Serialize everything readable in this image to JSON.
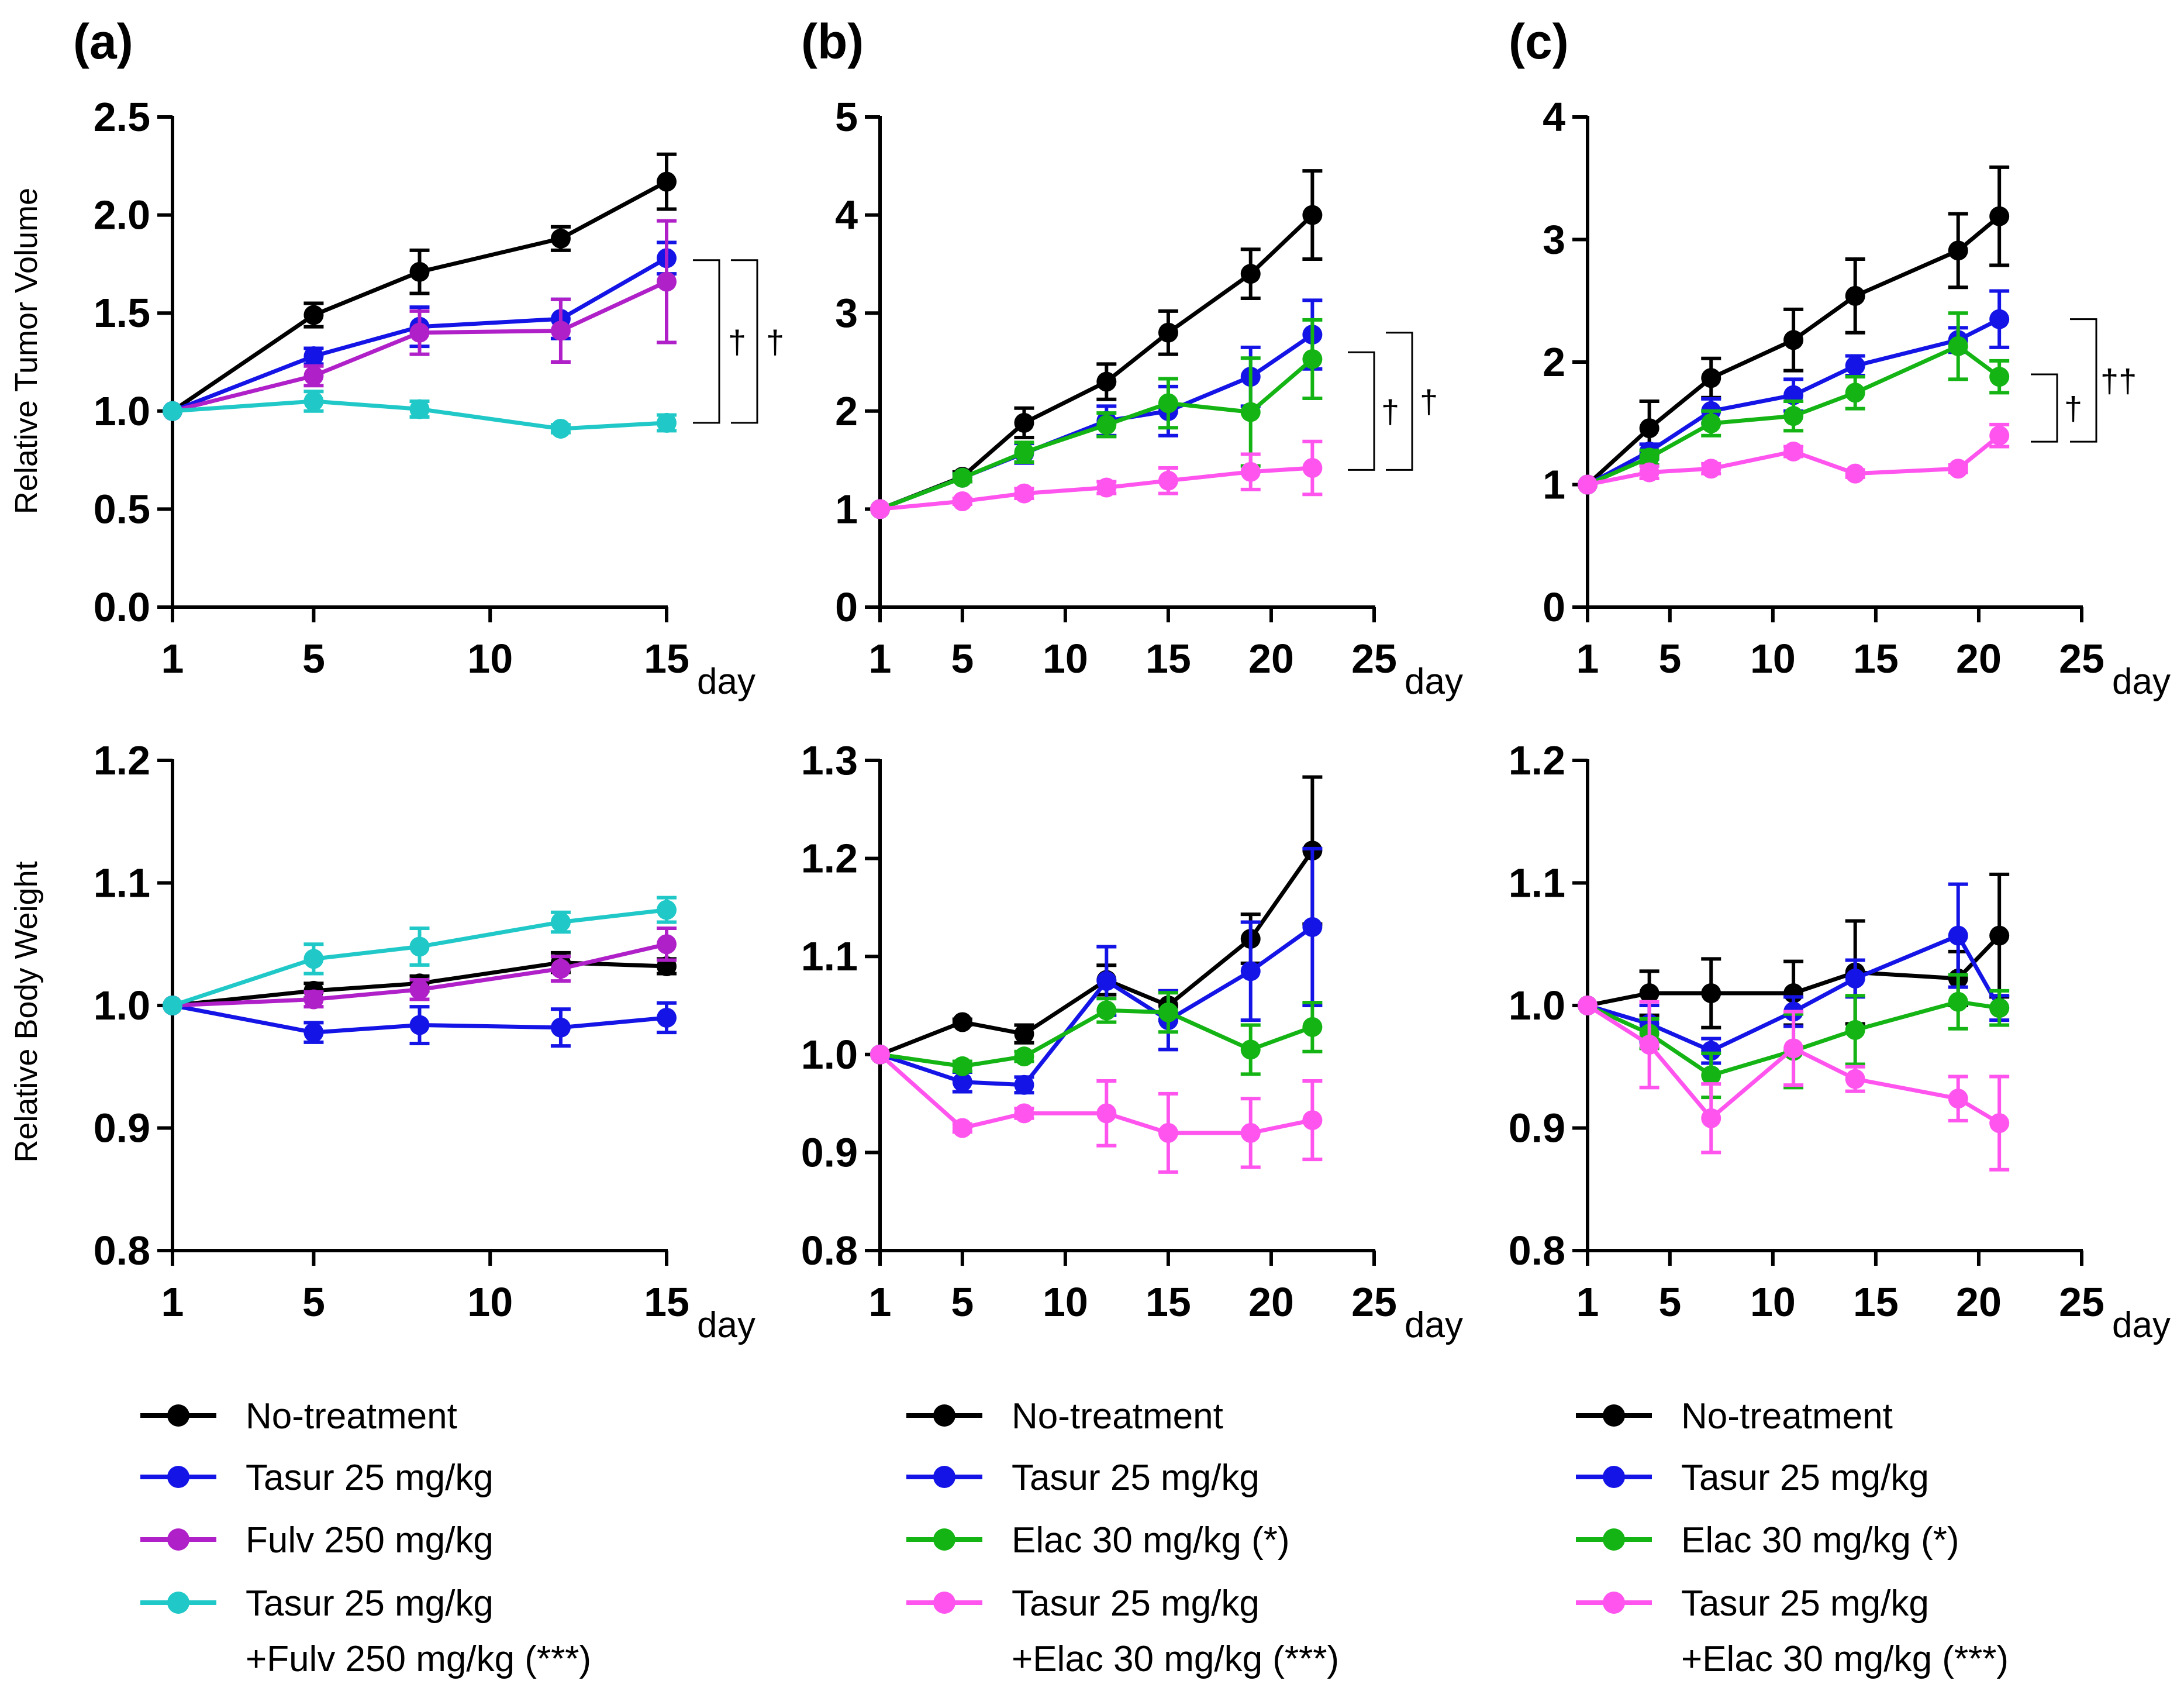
{
  "figure": {
    "panel_labels": [
      "(a)",
      "(b)",
      "(c)"
    ],
    "ylabels": [
      "Relative Tumor Volume",
      "Relative Body Weight"
    ],
    "xunit": "day"
  },
  "colors": {
    "No-treatment": "#000000",
    "Tasur": "#1414e6",
    "Fulv": "#b020c8",
    "TasurFulv": "#20c8c8",
    "Elac": "#14b414",
    "TasurElac": "#ff55ee"
  },
  "legends": [
    [
      {
        "lines": [
          "No-treatment"
        ],
        "color": "#000000"
      },
      {
        "lines": [
          "Tasur 25 mg/kg"
        ],
        "color": "#1414e6"
      },
      {
        "lines": [
          "Fulv 250 mg/kg"
        ],
        "color": "#b020c8"
      },
      {
        "lines": [
          "Tasur 25 mg/kg",
          "+Fulv 250 mg/kg (***)"
        ],
        "color": "#20c8c8"
      }
    ],
    [
      {
        "lines": [
          "No-treatment"
        ],
        "color": "#000000"
      },
      {
        "lines": [
          "Tasur 25 mg/kg"
        ],
        "color": "#1414e6"
      },
      {
        "lines": [
          "Elac 30 mg/kg (*)"
        ],
        "color": "#14b414"
      },
      {
        "lines": [
          "Tasur 25 mg/kg",
          "+Elac 30 mg/kg (***)"
        ],
        "color": "#ff55ee"
      }
    ],
    [
      {
        "lines": [
          "No-treatment"
        ],
        "color": "#000000"
      },
      {
        "lines": [
          "Tasur 25 mg/kg"
        ],
        "color": "#1414e6"
      },
      {
        "lines": [
          "Elac 30 mg/kg (*)"
        ],
        "color": "#14b414"
      },
      {
        "lines": [
          "Tasur 25 mg/kg",
          "+Elac 30 mg/kg (***)"
        ],
        "color": "#ff55ee"
      }
    ]
  ],
  "chart_data": [
    {
      "panel": "(a)",
      "type": "line",
      "ylabel": "Relative Tumor Volume",
      "xlabel": "day",
      "xlim": [
        1,
        15
      ],
      "xticks": [
        1,
        5,
        10,
        15
      ],
      "ylim": [
        0,
        2.5
      ],
      "yticks": [
        0.0,
        0.5,
        1.0,
        1.5,
        2.0,
        2.5
      ],
      "ytick_labels": [
        "0.0",
        "0.5",
        "1.0",
        "1.5",
        "2.0",
        "2.5"
      ],
      "series": [
        {
          "name": "No-treatment",
          "color": "#000000",
          "x": [
            1,
            5,
            8,
            12,
            15
          ],
          "y": [
            1.0,
            1.49,
            1.71,
            1.88,
            2.17
          ],
          "err": [
            0,
            0.06,
            0.11,
            0.06,
            0.14
          ]
        },
        {
          "name": "Tasur 25 mg/kg",
          "color": "#1414e6",
          "x": [
            1,
            5,
            8,
            12,
            15
          ],
          "y": [
            1.0,
            1.28,
            1.43,
            1.47,
            1.78
          ],
          "err": [
            0,
            0.04,
            0.1,
            0.1,
            0.08
          ]
        },
        {
          "name": "Fulv 250 mg/kg",
          "color": "#b020c8",
          "x": [
            1,
            5,
            8,
            12,
            15
          ],
          "y": [
            1.0,
            1.18,
            1.4,
            1.41,
            1.66
          ],
          "err": [
            0,
            0.05,
            0.11,
            0.16,
            0.31
          ]
        },
        {
          "name": "Tasur 25 mg/kg +Fulv 250 mg/kg (***)",
          "color": "#20c8c8",
          "x": [
            1,
            5,
            8,
            12,
            15
          ],
          "y": [
            1.0,
            1.05,
            1.01,
            0.91,
            0.94
          ],
          "err": [
            0,
            0.05,
            0.04,
            0.02,
            0.04
          ]
        }
      ],
      "annotations": [
        {
          "text": "†",
          "y_top": 1.77,
          "y_bottom": 0.94
        },
        {
          "text": "†",
          "y_top": 1.77,
          "y_bottom": 0.94
        }
      ]
    },
    {
      "panel": "(b)",
      "type": "line",
      "ylabel": "",
      "xlabel": "day",
      "xlim": [
        1,
        25
      ],
      "xticks": [
        1,
        5,
        10,
        15,
        20,
        25
      ],
      "ylim": [
        0,
        5
      ],
      "yticks": [
        0,
        1,
        2,
        3,
        4,
        5
      ],
      "ytick_labels": [
        "0",
        "1",
        "2",
        "3",
        "4",
        "5"
      ],
      "series": [
        {
          "name": "No-treatment",
          "color": "#000000",
          "x": [
            1,
            5,
            8,
            12,
            15,
            19,
            22
          ],
          "y": [
            1.0,
            1.33,
            1.88,
            2.3,
            2.8,
            3.4,
            4.0
          ],
          "err": [
            0,
            0.05,
            0.15,
            0.18,
            0.22,
            0.25,
            0.45
          ]
        },
        {
          "name": "Tasur 25 mg/kg",
          "color": "#1414e6",
          "x": [
            1,
            5,
            8,
            12,
            15,
            19,
            22
          ],
          "y": [
            1.0,
            1.32,
            1.57,
            1.9,
            2.0,
            2.35,
            2.78
          ],
          "err": [
            0,
            0.04,
            0.1,
            0.15,
            0.25,
            0.3,
            0.35
          ]
        },
        {
          "name": "Elac 30 mg/kg (*)",
          "color": "#14b414",
          "x": [
            1,
            5,
            8,
            12,
            15,
            19,
            22
          ],
          "y": [
            1.0,
            1.32,
            1.58,
            1.86,
            2.08,
            1.99,
            2.53
          ],
          "err": [
            0,
            0.04,
            0.1,
            0.12,
            0.25,
            0.55,
            0.4
          ]
        },
        {
          "name": "Tasur 25 mg/kg +Elac 30 mg/kg (***)",
          "color": "#ff55ee",
          "x": [
            1,
            5,
            8,
            12,
            15,
            19,
            22
          ],
          "y": [
            1.0,
            1.08,
            1.16,
            1.22,
            1.29,
            1.38,
            1.42
          ],
          "err": [
            0,
            0.03,
            0.05,
            0.06,
            0.13,
            0.18,
            0.27
          ]
        }
      ],
      "annotations": [
        {
          "text": "†",
          "y_top": 2.6,
          "y_bottom": 1.4
        },
        {
          "text": "†",
          "y_top": 2.8,
          "y_bottom": 1.4
        }
      ]
    },
    {
      "panel": "(c)",
      "type": "line",
      "ylabel": "",
      "xlabel": "day",
      "xlim": [
        1,
        25
      ],
      "xticks": [
        1,
        5,
        10,
        15,
        20,
        25
      ],
      "ylim": [
        0,
        4
      ],
      "yticks": [
        0,
        1,
        2,
        3,
        4
      ],
      "ytick_labels": [
        "0",
        "1",
        "2",
        "3",
        "4"
      ],
      "series": [
        {
          "name": "No-treatment",
          "color": "#000000",
          "x": [
            1,
            4,
            7,
            11,
            14,
            19,
            21
          ],
          "y": [
            1.0,
            1.46,
            1.87,
            2.18,
            2.54,
            2.91,
            3.19
          ],
          "err": [
            0,
            0.22,
            0.16,
            0.25,
            0.3,
            0.3,
            0.4
          ]
        },
        {
          "name": "Tasur 25 mg/kg",
          "color": "#1414e6",
          "x": [
            1,
            4,
            7,
            11,
            14,
            19,
            21
          ],
          "y": [
            1.0,
            1.27,
            1.6,
            1.73,
            1.97,
            2.18,
            2.35
          ],
          "err": [
            0,
            0.06,
            0.1,
            0.13,
            0.08,
            0.1,
            0.23
          ]
        },
        {
          "name": "Elac 30 mg/kg (*)",
          "color": "#14b414",
          "x": [
            1,
            4,
            7,
            11,
            14,
            19,
            21
          ],
          "y": [
            1.0,
            1.22,
            1.5,
            1.56,
            1.75,
            2.13,
            1.88
          ],
          "err": [
            0,
            0.06,
            0.1,
            0.12,
            0.13,
            0.27,
            0.13
          ]
        },
        {
          "name": "Tasur 25 mg/kg +Elac 30 mg/kg (***)",
          "color": "#ff55ee",
          "x": [
            1,
            4,
            7,
            11,
            14,
            19,
            21
          ],
          "y": [
            1.0,
            1.1,
            1.13,
            1.27,
            1.09,
            1.13,
            1.4
          ],
          "err": [
            0,
            0.05,
            0.04,
            0.04,
            0.03,
            0.03,
            0.09
          ]
        }
      ],
      "annotations": [
        {
          "text": "†",
          "y_top": 1.9,
          "y_bottom": 1.35
        },
        {
          "text": "††",
          "y_top": 2.35,
          "y_bottom": 1.35
        }
      ]
    },
    {
      "panel": "(a)",
      "type": "line",
      "ylabel": "Relative Body Weight",
      "xlabel": "day",
      "xlim": [
        1,
        15
      ],
      "xticks": [
        1,
        5,
        10,
        15
      ],
      "ylim": [
        0.8,
        1.2
      ],
      "yticks": [
        0.8,
        0.9,
        1.0,
        1.1,
        1.2
      ],
      "ytick_labels": [
        "0.8",
        "0.9",
        "1.0",
        "1.1",
        "1.2"
      ],
      "series": [
        {
          "name": "No-treatment",
          "color": "#000000",
          "x": [
            1,
            5,
            8,
            12,
            15
          ],
          "y": [
            1.0,
            1.012,
            1.018,
            1.035,
            1.032
          ],
          "err": [
            0,
            0.006,
            0.006,
            0.008,
            0.006
          ]
        },
        {
          "name": "Tasur 25 mg/kg",
          "color": "#1414e6",
          "x": [
            1,
            5,
            8,
            12,
            15
          ],
          "y": [
            1.0,
            0.978,
            0.984,
            0.982,
            0.99
          ],
          "err": [
            0,
            0.008,
            0.015,
            0.015,
            0.012
          ]
        },
        {
          "name": "Fulv 250 mg/kg",
          "color": "#b020c8",
          "x": [
            1,
            5,
            8,
            12,
            15
          ],
          "y": [
            1.0,
            1.005,
            1.013,
            1.03,
            1.05
          ],
          "err": [
            0,
            0.006,
            0.008,
            0.01,
            0.013
          ]
        },
        {
          "name": "Tasur 25 mg/kg +Fulv 250 mg/kg (***)",
          "color": "#20c8c8",
          "x": [
            1,
            5,
            8,
            12,
            15
          ],
          "y": [
            1.0,
            1.038,
            1.048,
            1.068,
            1.078
          ],
          "err": [
            0,
            0.012,
            0.015,
            0.008,
            0.01
          ]
        }
      ]
    },
    {
      "panel": "(b)",
      "type": "line",
      "ylabel": "",
      "xlabel": "day",
      "xlim": [
        1,
        25
      ],
      "xticks": [
        1,
        5,
        10,
        15,
        20,
        25
      ],
      "ylim": [
        0.8,
        1.3
      ],
      "yticks": [
        0.8,
        0.9,
        1.0,
        1.1,
        1.2,
        1.3
      ],
      "ytick_labels": [
        "0.8",
        "0.9",
        "1.0",
        "1.1",
        "1.2",
        "1.3"
      ],
      "series": [
        {
          "name": "No-treatment",
          "color": "#000000",
          "x": [
            1,
            5,
            8,
            12,
            15,
            19,
            22
          ],
          "y": [
            1.0,
            1.033,
            1.021,
            1.076,
            1.05,
            1.118,
            1.208
          ],
          "err": [
            0,
            0.003,
            0.009,
            0.015,
            0.015,
            0.025,
            0.075
          ]
        },
        {
          "name": "Tasur 25 mg/kg",
          "color": "#1414e6",
          "x": [
            1,
            5,
            8,
            12,
            15,
            19,
            22
          ],
          "y": [
            1.0,
            0.972,
            0.969,
            1.075,
            1.035,
            1.085,
            1.13
          ],
          "err": [
            0,
            0.01,
            0.008,
            0.035,
            0.03,
            0.05,
            0.08
          ]
        },
        {
          "name": "Elac 30 mg/kg (*)",
          "color": "#14b414",
          "x": [
            1,
            5,
            8,
            12,
            15,
            19,
            22
          ],
          "y": [
            1.0,
            0.988,
            0.998,
            1.045,
            1.043,
            1.005,
            1.028
          ],
          "err": [
            0,
            0.005,
            0.005,
            0.012,
            0.02,
            0.025,
            0.025
          ]
        },
        {
          "name": "Tasur 25 mg/kg +Elac 30 mg/kg (***)",
          "color": "#ff55ee",
          "x": [
            1,
            5,
            8,
            12,
            15,
            19,
            22
          ],
          "y": [
            1.0,
            0.925,
            0.94,
            0.94,
            0.92,
            0.92,
            0.933
          ],
          "err": [
            0,
            0.004,
            0.005,
            0.033,
            0.04,
            0.035,
            0.04
          ]
        }
      ]
    },
    {
      "panel": "(c)",
      "type": "line",
      "ylabel": "",
      "xlabel": "day",
      "xlim": [
        1,
        25
      ],
      "xticks": [
        1,
        5,
        10,
        15,
        20,
        25
      ],
      "ylim": [
        0.8,
        1.2
      ],
      "yticks": [
        0.8,
        0.9,
        1.0,
        1.1,
        1.2
      ],
      "ytick_labels": [
        "0.8",
        "0.9",
        "1.0",
        "1.1",
        "1.2"
      ],
      "series": [
        {
          "name": "No-treatment",
          "color": "#000000",
          "x": [
            1,
            4,
            7,
            11,
            14,
            19,
            21
          ],
          "y": [
            1.0,
            1.01,
            1.01,
            1.01,
            1.027,
            1.022,
            1.057
          ],
          "err": [
            0,
            0.018,
            0.028,
            0.026,
            0.042,
            0.022,
            0.05
          ]
        },
        {
          "name": "Tasur 25 mg/kg",
          "color": "#1414e6",
          "x": [
            1,
            4,
            7,
            11,
            14,
            19,
            21
          ],
          "y": [
            1.0,
            0.985,
            0.963,
            0.995,
            1.022,
            1.057,
            0.998
          ],
          "err": [
            0,
            0.015,
            0.01,
            0.012,
            0.015,
            0.042,
            0.01
          ]
        },
        {
          "name": "Elac 30 mg/kg (*)",
          "color": "#14b414",
          "x": [
            1,
            4,
            7,
            11,
            14,
            19,
            21
          ],
          "y": [
            1.0,
            0.977,
            0.943,
            0.963,
            0.98,
            1.003,
            0.998
          ],
          "err": [
            0,
            0.012,
            0.018,
            0.03,
            0.028,
            0.022,
            0.014
          ]
        },
        {
          "name": "Tasur 25 mg/kg +Elac 30 mg/kg (***)",
          "color": "#ff55ee",
          "x": [
            1,
            4,
            7,
            11,
            14,
            19,
            21
          ],
          "y": [
            1.0,
            0.968,
            0.908,
            0.965,
            0.94,
            0.924,
            0.904
          ],
          "err": [
            0,
            0.035,
            0.028,
            0.03,
            0.01,
            0.018,
            0.038
          ]
        }
      ]
    }
  ]
}
